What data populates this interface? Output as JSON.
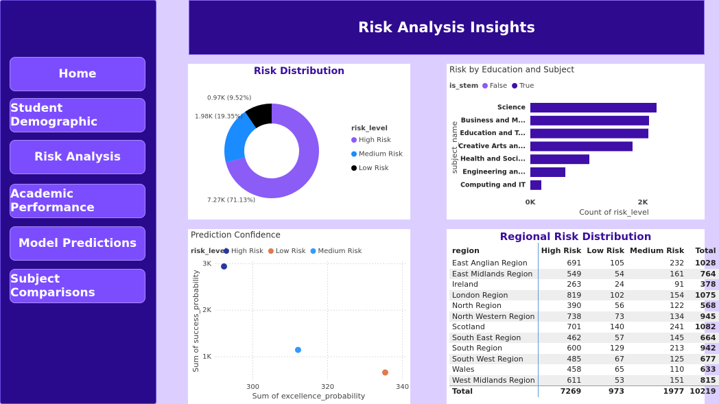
{
  "nav": [
    "Home",
    "Student Demographic",
    "Risk Analysis",
    "Academic Performance",
    "Model Predictions",
    "Subject Comparisons"
  ],
  "header": {
    "title": "Risk Analysis Insights"
  },
  "chart_data": [
    {
      "type": "pie",
      "title": "Risk Distribution",
      "legend_title": "risk_level",
      "categories": [
        "High Risk",
        "Medium Risk",
        "Low Risk"
      ],
      "values": [
        7269,
        1977,
        973
      ],
      "value_labels": [
        "7.27K (71.13%)",
        "1.98K (19.35%)",
        "0.97K (9.52%)"
      ],
      "colors": [
        "#8b5cf6",
        "#1a8cff",
        "#000000"
      ]
    },
    {
      "type": "hbar",
      "title": "Risk by Education and Subject",
      "legend_title": "is_stem",
      "legend": [
        {
          "name": "False",
          "color": "#8b5cf6"
        },
        {
          "name": "True",
          "color": "#3f0fa8"
        }
      ],
      "categories": [
        "Science",
        "Business and M...",
        "Education and T...",
        "Creative Arts an...",
        "Health and Soci...",
        "Engineering an...",
        "Computing and IT"
      ],
      "values": [
        2244,
        2110,
        2098,
        1817,
        1049,
        622,
        195
      ],
      "color": "#3f0fa8",
      "xlim": [
        0,
        2300
      ],
      "xticks": [
        {
          "value": 0,
          "label": "0K"
        },
        {
          "value": 2000,
          "label": "2K"
        }
      ],
      "x_label": "Count of risk_level",
      "y_label": "subject_name"
    },
    {
      "type": "scatter",
      "title": "Prediction Confidence",
      "legend_title": "risk_level",
      "series": [
        {
          "name": "High Risk",
          "color": "#28389e",
          "x": [
            292.3
          ],
          "values": [
            2941
          ]
        },
        {
          "name": "Low Risk",
          "color": "#e07a50",
          "x": [
            335.4
          ],
          "values": [
            662
          ]
        },
        {
          "name": "Medium Risk",
          "color": "#3399ff",
          "x": [
            312.1
          ],
          "values": [
            1147
          ]
        }
      ],
      "xlim": [
        290,
        341
      ],
      "ylim": [
        500,
        3050
      ],
      "xticks": [
        300,
        320,
        340
      ],
      "yticks": [
        {
          "value": 1000,
          "label": "1K"
        },
        {
          "value": 2000,
          "label": "2K"
        },
        {
          "value": 3000,
          "label": "3K"
        }
      ],
      "x_label": "Sum of excellence_probability",
      "y_label": "Sum of success_probability",
      "grid": true
    }
  ],
  "table": {
    "title": "Regional Risk Distribution",
    "columns": [
      "region",
      "High Risk",
      "Low Risk",
      "Medium Risk",
      "Total"
    ],
    "rows": [
      [
        "East Anglian Region",
        691,
        105,
        232,
        1028
      ],
      [
        "East Midlands Region",
        549,
        54,
        161,
        764
      ],
      [
        "Ireland",
        263,
        24,
        91,
        378
      ],
      [
        "London Region",
        819,
        102,
        154,
        1075
      ],
      [
        "North Region",
        390,
        56,
        122,
        568
      ],
      [
        "North Western Region",
        738,
        73,
        134,
        945
      ],
      [
        "Scotland",
        701,
        140,
        241,
        1082
      ],
      [
        "South East Region",
        462,
        57,
        145,
        664
      ],
      [
        "South Region",
        600,
        129,
        213,
        942
      ],
      [
        "South West Region",
        485,
        67,
        125,
        677
      ],
      [
        "Wales",
        458,
        65,
        110,
        633
      ],
      [
        "West Midlands Region",
        611,
        53,
        151,
        815
      ]
    ],
    "total": [
      "Total",
      7269,
      973,
      1977,
      10219
    ]
  }
}
